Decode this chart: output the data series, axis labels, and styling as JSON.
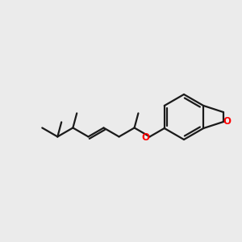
{
  "bg_color": "#ebebeb",
  "bond_color": "#1a1a1a",
  "o_color": "#ff0000",
  "linewidth": 1.6,
  "figsize": [
    3.0,
    3.0
  ],
  "dpi": 100
}
